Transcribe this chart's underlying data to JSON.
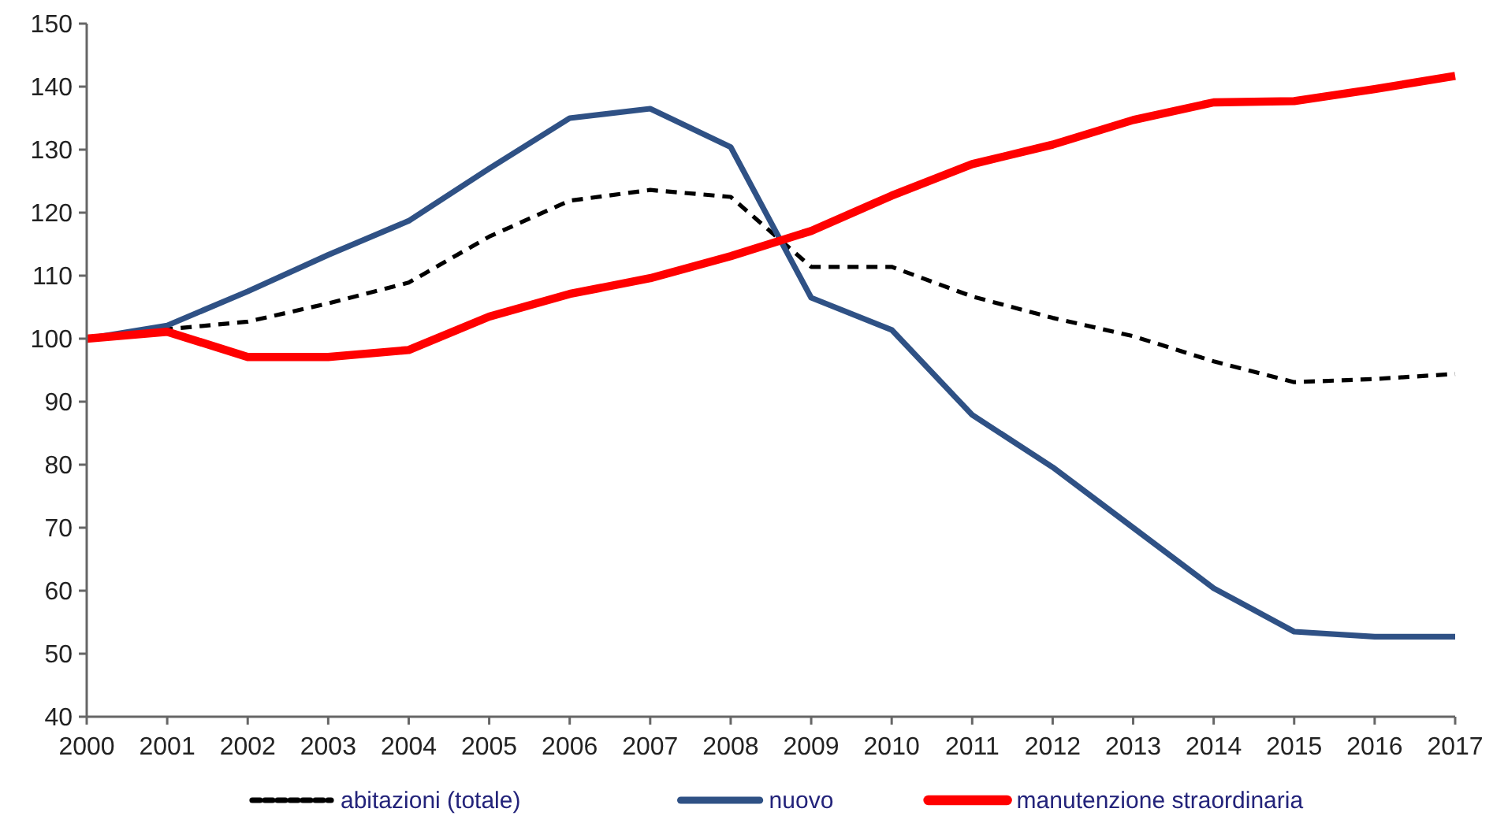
{
  "chart_data": {
    "type": "line",
    "x": [
      2000,
      2001,
      2002,
      2003,
      2004,
      2005,
      2006,
      2007,
      2008,
      2009,
      2010,
      2011,
      2012,
      2013,
      2014,
      2015,
      2016,
      2017
    ],
    "series": [
      {
        "name": "abitazioni (totale)",
        "color": "#000000",
        "line_style": "dashed",
        "values": [
          100,
          101.5,
          102.7,
          105.6,
          108.9,
          116.2,
          121.9,
          123.6,
          122.5,
          111.4,
          111.4,
          106.7,
          103.3,
          100.4,
          96.4,
          93.1,
          93.6,
          94.4
        ]
      },
      {
        "name": "nuovo",
        "color": "#2f5185",
        "line_style": "solid",
        "values": [
          100,
          102.1,
          107.5,
          113.3,
          118.7,
          127,
          135,
          136.5,
          130.4,
          106.5,
          101.4,
          87.9,
          79.6,
          70,
          60.4,
          53.5,
          52.7,
          52.7
        ]
      },
      {
        "name": "manutenzione straordinaria",
        "color": "#ff0000",
        "line_style": "solid",
        "values": [
          100,
          101.1,
          97.1,
          97.1,
          98.2,
          103.5,
          107.1,
          109.6,
          113.1,
          117.1,
          122.7,
          127.7,
          130.8,
          134.7,
          137.5,
          137.7,
          139.6,
          141.7
        ]
      }
    ],
    "xlim": [
      2000,
      2017
    ],
    "xticks": [
      2000,
      2001,
      2002,
      2003,
      2004,
      2005,
      2006,
      2007,
      2008,
      2009,
      2010,
      2011,
      2012,
      2013,
      2014,
      2015,
      2016,
      2017
    ],
    "ylim": [
      40,
      150
    ],
    "yticks": [
      40,
      50,
      60,
      70,
      80,
      90,
      100,
      110,
      120,
      130,
      140,
      150
    ],
    "grid": false,
    "legend": "bottom"
  }
}
